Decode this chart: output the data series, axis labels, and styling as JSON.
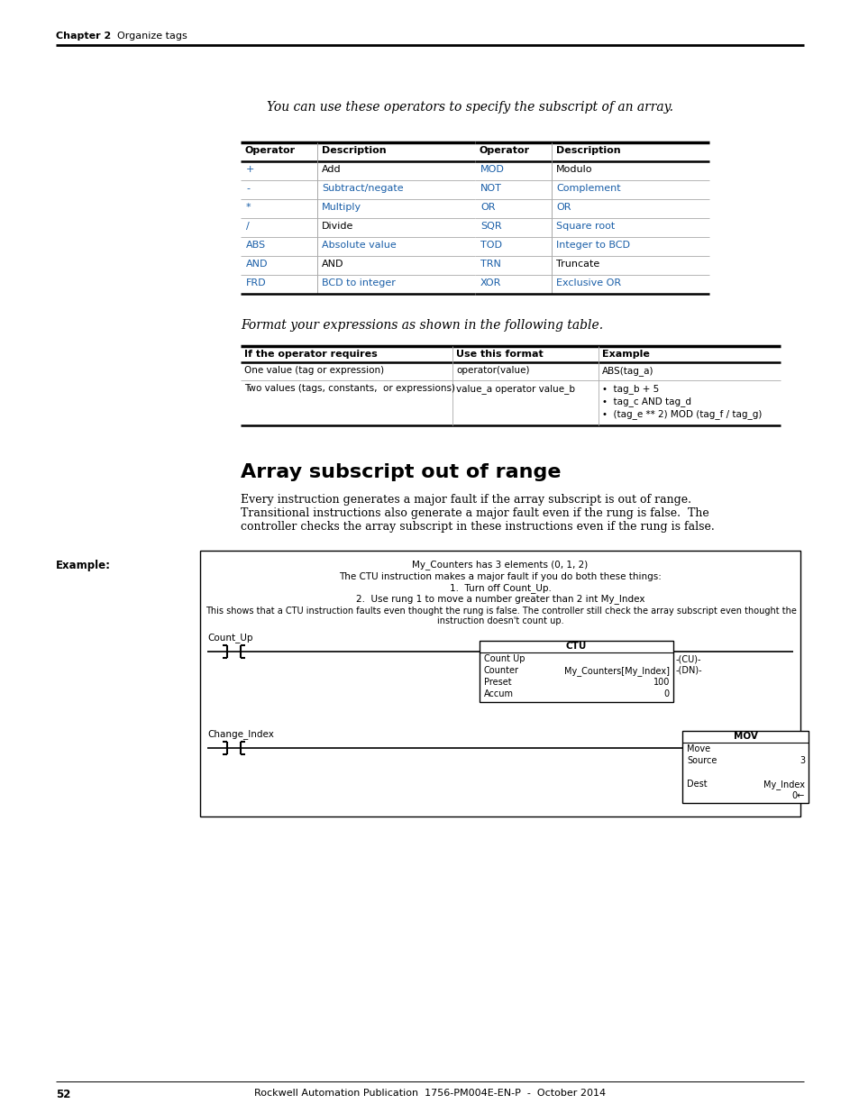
{
  "page_bg": "#ffffff",
  "header_text_left": "Chapter 2",
  "header_text_right": "Organize tags",
  "footer_text": "Rockwell Automation Publication  1756-PM004E-EN-P  -  October 2014",
  "footer_page": "52",
  "intro_text": "You can use these operators to specify the subscript of an array.",
  "op_color_blue": "#1a5fa8",
  "op_color_orange": "#c05000",
  "operators_table1": {
    "headers": [
      "Operator",
      "Description"
    ],
    "rows": [
      [
        "+",
        "blue",
        "Add",
        "black"
      ],
      [
        "-",
        "blue",
        "Subtract/negate",
        "blue"
      ],
      [
        "*",
        "blue",
        "Multiply",
        "blue"
      ],
      [
        "/",
        "blue",
        "Divide",
        "black"
      ],
      [
        "ABS",
        "blue",
        "Absolute value",
        "blue"
      ],
      [
        "AND",
        "blue",
        "AND",
        "black"
      ],
      [
        "FRD",
        "blue",
        "BCD to integer",
        "blue"
      ]
    ]
  },
  "operators_table2": {
    "headers": [
      "Operator",
      "Description"
    ],
    "rows": [
      [
        "MOD",
        "blue",
        "Modulo",
        "black"
      ],
      [
        "NOT",
        "blue",
        "Complement",
        "blue"
      ],
      [
        "OR",
        "blue",
        "OR",
        "blue"
      ],
      [
        "SQR",
        "blue",
        "Square root",
        "blue"
      ],
      [
        "TOD",
        "blue",
        "Integer to BCD",
        "blue"
      ],
      [
        "TRN",
        "blue",
        "Truncate",
        "black"
      ],
      [
        "XOR",
        "blue",
        "Exclusive OR",
        "blue"
      ]
    ]
  },
  "format_intro": "Format your expressions as shown in the following table.",
  "section_title": "Array subscript out of range",
  "section_body_lines": [
    "Every instruction generates a major fault if the array subscript is out of range.",
    "Transitional instructions also generate a major fault even if the rung is false.  The",
    "controller checks the array subscript in these instructions even if the rung is false."
  ],
  "example_label": "Example:",
  "ex_line1": "My_Counters has 3 elements (0, 1, 2)",
  "ex_line2": "The CTU instruction makes a major fault if you do both these things:",
  "ex_line3": "1.  Turn off Count_Up.",
  "ex_line4": "2.  Use rung 1 to move a number greater than 2 int My_Index",
  "ex_line5a": "This shows that a CTU instruction faults even thought the rung is false. The controller still check the array subscript even thought the",
  "ex_line5b": "instruction doesn't count up.",
  "rung1_label": "Count_Up",
  "rung2_label": "Change_Index",
  "ctu_title": "CTU",
  "ctu_fields": [
    [
      "Count Up",
      ""
    ],
    [
      "Counter",
      "My_Counters[My_Index]"
    ],
    [
      "Preset",
      "100"
    ],
    [
      "Accum",
      "0"
    ]
  ],
  "ctu_out1": "-(CU)-",
  "ctu_out2": "-(DN)-",
  "mov_title": "MOV",
  "mov_fields": [
    [
      "Move",
      ""
    ],
    [
      "Source",
      "3"
    ],
    [
      "",
      ""
    ],
    [
      "Dest",
      "My_Index"
    ],
    [
      "",
      "0←"
    ]
  ]
}
